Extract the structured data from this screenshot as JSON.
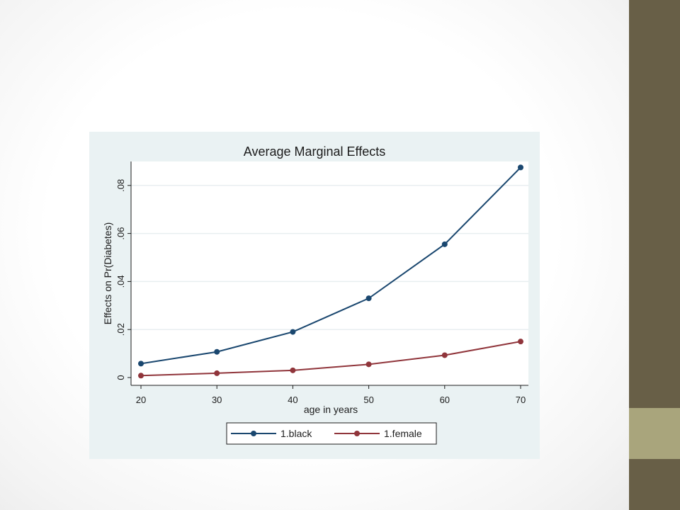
{
  "colors": {
    "side_bar": "#685f47",
    "side_accent": "#a9a57c",
    "panel_bg": "#eaf2f3",
    "plot_bg": "#ffffff",
    "grid": "#e8eef0"
  },
  "chart_data": {
    "type": "line",
    "title": "Average Marginal Effects",
    "xlabel": "age in years",
    "ylabel": "Effects on Pr(Diabetes)",
    "x": [
      20,
      30,
      40,
      50,
      60,
      70
    ],
    "xticks": [
      "20",
      "30",
      "40",
      "50",
      "60",
      "70"
    ],
    "yticks": [
      "0",
      ".02",
      ".04",
      ".06",
      ".08"
    ],
    "ytick_values": [
      0,
      0.02,
      0.04,
      0.06,
      0.08
    ],
    "xlim": [
      20,
      70
    ],
    "ylim": [
      0,
      0.09
    ],
    "grid": true,
    "legend_position": "bottom",
    "series": [
      {
        "name": "1.black",
        "color": "#1a476f",
        "values": [
          0.0058,
          0.0107,
          0.019,
          0.033,
          0.0555,
          0.0875
        ]
      },
      {
        "name": "1.female",
        "color": "#90353b",
        "values": [
          0.0008,
          0.0018,
          0.003,
          0.0055,
          0.0093,
          0.015
        ]
      }
    ]
  }
}
